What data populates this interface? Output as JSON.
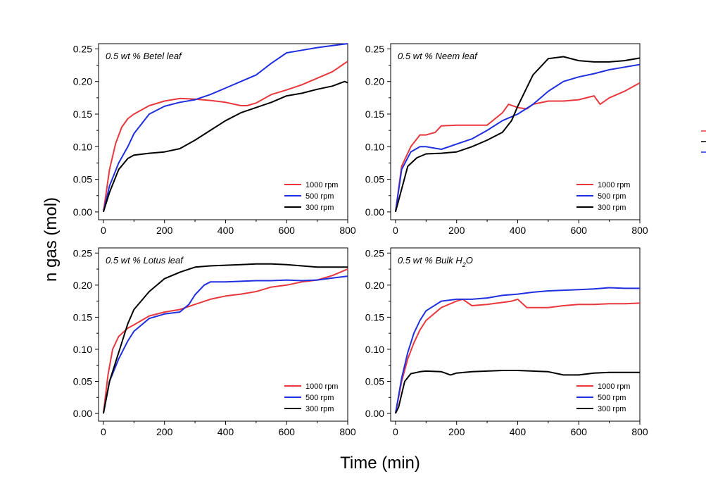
{
  "figure": {
    "xlabel": "Time (min)",
    "ylabel": "n gas (mol)"
  },
  "colors": {
    "1000 rpm": "#e8383d",
    "500 rpm": "#1f2fe0",
    "300 rpm": "#000000"
  },
  "chart_data": [
    {
      "type": "line",
      "title": "0.5 wt % Betel leaf",
      "xlim": [
        0,
        800
      ],
      "ylim": [
        0,
        0.25
      ],
      "xticks": [
        "0",
        "200",
        "400",
        "600",
        "800"
      ],
      "yticks": [
        "0.00",
        "0.05",
        "0.10",
        "0.15",
        "0.20",
        "0.25"
      ],
      "legend_position": "bottom-right",
      "series": [
        {
          "name": "1000 rpm",
          "x": [
            0,
            20,
            40,
            60,
            80,
            100,
            150,
            200,
            250,
            300,
            350,
            400,
            450,
            470,
            500,
            550,
            600,
            650,
            700,
            750,
            800
          ],
          "y": [
            0,
            0.065,
            0.105,
            0.13,
            0.143,
            0.15,
            0.163,
            0.17,
            0.174,
            0.173,
            0.171,
            0.168,
            0.163,
            0.163,
            0.167,
            0.18,
            0.187,
            0.195,
            0.205,
            0.215,
            0.231
          ]
        },
        {
          "name": "500 rpm",
          "x": [
            0,
            20,
            50,
            80,
            100,
            150,
            200,
            250,
            300,
            350,
            400,
            450,
            500,
            550,
            600,
            650,
            700,
            750,
            800
          ],
          "y": [
            0,
            0.04,
            0.075,
            0.1,
            0.12,
            0.15,
            0.162,
            0.168,
            0.172,
            0.18,
            0.19,
            0.2,
            0.21,
            0.228,
            0.244,
            0.248,
            0.252,
            0.255,
            0.258
          ]
        },
        {
          "name": "300 rpm",
          "x": [
            0,
            20,
            50,
            80,
            100,
            150,
            200,
            250,
            300,
            350,
            400,
            450,
            500,
            550,
            600,
            650,
            700,
            750,
            790,
            800
          ],
          "y": [
            0,
            0.03,
            0.065,
            0.082,
            0.087,
            0.09,
            0.092,
            0.097,
            0.11,
            0.125,
            0.14,
            0.152,
            0.16,
            0.168,
            0.178,
            0.182,
            0.188,
            0.193,
            0.2,
            0.198
          ]
        }
      ]
    },
    {
      "type": "line",
      "title": "0.5 wt % Neem leaf",
      "xlim": [
        0,
        800
      ],
      "ylim": [
        0,
        0.25
      ],
      "xticks": [
        "0",
        "200",
        "400",
        "600",
        "800"
      ],
      "yticks": [
        "0.00",
        "0.05",
        "0.10",
        "0.15",
        "0.20",
        "0.25"
      ],
      "legend_position": "bottom-right",
      "series": [
        {
          "name": "1000 rpm",
          "x": [
            0,
            20,
            50,
            80,
            100,
            130,
            150,
            200,
            250,
            300,
            350,
            370,
            400,
            430,
            450,
            500,
            550,
            600,
            650,
            670,
            700,
            750,
            800
          ],
          "y": [
            0,
            0.07,
            0.1,
            0.118,
            0.118,
            0.122,
            0.132,
            0.133,
            0.133,
            0.133,
            0.152,
            0.165,
            0.16,
            0.158,
            0.165,
            0.17,
            0.17,
            0.172,
            0.178,
            0.165,
            0.175,
            0.185,
            0.198
          ]
        },
        {
          "name": "500 rpm",
          "x": [
            0,
            20,
            50,
            80,
            100,
            150,
            200,
            250,
            300,
            350,
            400,
            450,
            500,
            550,
            600,
            650,
            700,
            750,
            800
          ],
          "y": [
            0,
            0.065,
            0.092,
            0.1,
            0.1,
            0.096,
            0.104,
            0.112,
            0.125,
            0.14,
            0.15,
            0.165,
            0.185,
            0.2,
            0.207,
            0.212,
            0.218,
            0.222,
            0.226
          ]
        },
        {
          "name": "300 rpm",
          "x": [
            0,
            20,
            40,
            70,
            100,
            150,
            200,
            250,
            300,
            350,
            380,
            400,
            450,
            500,
            550,
            600,
            650,
            700,
            750,
            800
          ],
          "y": [
            0,
            0.035,
            0.07,
            0.083,
            0.089,
            0.09,
            0.092,
            0.1,
            0.11,
            0.122,
            0.14,
            0.162,
            0.21,
            0.235,
            0.238,
            0.232,
            0.23,
            0.23,
            0.232,
            0.236
          ]
        }
      ]
    },
    {
      "type": "line",
      "title": "0.5 wt % Lotus leaf",
      "xlim": [
        0,
        800
      ],
      "ylim": [
        0,
        0.25
      ],
      "xticks": [
        "0",
        "200",
        "400",
        "600",
        "800"
      ],
      "yticks": [
        "0.00",
        "0.05",
        "0.10",
        "0.15",
        "0.20",
        "0.25"
      ],
      "legend_position": "bottom-right",
      "series": [
        {
          "name": "1000 rpm",
          "x": [
            0,
            15,
            30,
            50,
            80,
            100,
            150,
            200,
            250,
            300,
            350,
            400,
            450,
            500,
            550,
            600,
            650,
            700,
            750,
            800
          ],
          "y": [
            0,
            0.06,
            0.1,
            0.12,
            0.133,
            0.138,
            0.152,
            0.158,
            0.162,
            0.17,
            0.178,
            0.183,
            0.186,
            0.19,
            0.197,
            0.2,
            0.205,
            0.208,
            0.215,
            0.225
          ]
        },
        {
          "name": "500 rpm",
          "x": [
            0,
            20,
            50,
            80,
            100,
            150,
            200,
            250,
            280,
            300,
            330,
            350,
            400,
            450,
            500,
            550,
            600,
            650,
            700,
            750,
            800
          ],
          "y": [
            0,
            0.05,
            0.085,
            0.113,
            0.128,
            0.148,
            0.155,
            0.158,
            0.17,
            0.185,
            0.2,
            0.205,
            0.205,
            0.206,
            0.207,
            0.207,
            0.208,
            0.207,
            0.208,
            0.211,
            0.214
          ]
        },
        {
          "name": "300 rpm",
          "x": [
            0,
            20,
            50,
            80,
            100,
            150,
            200,
            250,
            300,
            350,
            400,
            450,
            500,
            550,
            600,
            650,
            700,
            750,
            800
          ],
          "y": [
            0,
            0.05,
            0.095,
            0.14,
            0.162,
            0.19,
            0.21,
            0.22,
            0.228,
            0.23,
            0.231,
            0.232,
            0.233,
            0.233,
            0.232,
            0.23,
            0.228,
            0.228,
            0.228
          ]
        }
      ]
    },
    {
      "type": "line",
      "title": "0.5 wt % Bulk H",
      "title_sub": "2",
      "title_suffix": "O",
      "xlim": [
        0,
        800
      ],
      "ylim": [
        0,
        0.25
      ],
      "xticks": [
        "0",
        "200",
        "400",
        "600",
        "800"
      ],
      "yticks": [
        "0.00",
        "0.05",
        "0.10",
        "0.15",
        "0.20",
        "0.25"
      ],
      "legend_position": "bottom-right",
      "series": [
        {
          "name": "1000 rpm",
          "x": [
            0,
            20,
            40,
            60,
            80,
            100,
            150,
            200,
            220,
            250,
            300,
            350,
            380,
            400,
            430,
            450,
            500,
            550,
            600,
            650,
            700,
            750,
            800
          ],
          "y": [
            0,
            0.05,
            0.085,
            0.11,
            0.13,
            0.145,
            0.165,
            0.175,
            0.178,
            0.168,
            0.17,
            0.173,
            0.175,
            0.178,
            0.165,
            0.165,
            0.165,
            0.168,
            0.17,
            0.17,
            0.171,
            0.171,
            0.172
          ]
        },
        {
          "name": "500 rpm",
          "x": [
            0,
            20,
            40,
            60,
            80,
            100,
            150,
            200,
            250,
            300,
            350,
            400,
            450,
            500,
            550,
            600,
            650,
            700,
            750,
            800
          ],
          "y": [
            0,
            0.055,
            0.095,
            0.125,
            0.145,
            0.16,
            0.175,
            0.178,
            0.178,
            0.18,
            0.184,
            0.186,
            0.189,
            0.191,
            0.192,
            0.193,
            0.194,
            0.196,
            0.195,
            0.195
          ]
        },
        {
          "name": "300 rpm",
          "x": [
            0,
            10,
            20,
            30,
            50,
            80,
            100,
            150,
            180,
            200,
            250,
            300,
            350,
            400,
            450,
            500,
            550,
            600,
            650,
            700,
            750,
            800
          ],
          "y": [
            0,
            0.01,
            0.03,
            0.05,
            0.062,
            0.065,
            0.066,
            0.065,
            0.06,
            0.063,
            0.065,
            0.066,
            0.067,
            0.067,
            0.066,
            0.065,
            0.06,
            0.06,
            0.063,
            0.064,
            0.064,
            0.064
          ]
        }
      ]
    }
  ]
}
